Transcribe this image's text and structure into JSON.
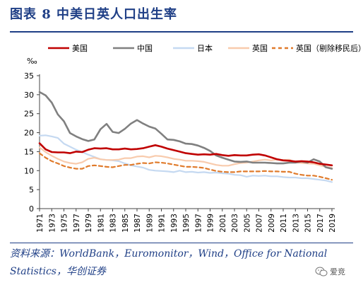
{
  "figure": {
    "title": "图表 8   中美日英人口出生率",
    "source_note": "资料来源：WorldBank，Euromonitor，Wind，Office for National Statistics，华创证券",
    "watermark": "爱竞"
  },
  "chart_data": {
    "type": "line",
    "title": "",
    "ylabel": "‰",
    "xlabel": "",
    "ylim": [
      0,
      35
    ],
    "yticks": [
      0,
      5,
      10,
      15,
      20,
      25,
      30,
      35
    ],
    "xticks": [
      "1971",
      "1973",
      "1975",
      "1977",
      "1979",
      "1981",
      "1983",
      "1985",
      "1987",
      "1989",
      "1991",
      "1993",
      "1995",
      "1997",
      "1999",
      "2001",
      "2003",
      "2005",
      "2007",
      "2009",
      "2011",
      "2013",
      "2015",
      "2017",
      "2019"
    ],
    "grid": false,
    "legend_position": "top",
    "x": [
      1971,
      1972,
      1973,
      1974,
      1975,
      1976,
      1977,
      1978,
      1979,
      1980,
      1981,
      1982,
      1983,
      1984,
      1985,
      1986,
      1987,
      1988,
      1989,
      1990,
      1991,
      1992,
      1993,
      1994,
      1995,
      1996,
      1997,
      1998,
      1999,
      2000,
      2001,
      2002,
      2003,
      2004,
      2005,
      2006,
      2007,
      2008,
      2009,
      2010,
      2011,
      2012,
      2013,
      2014,
      2015,
      2016,
      2017,
      2018,
      2019
    ],
    "series": [
      {
        "name": "美国",
        "color": "#c00000",
        "dash": "solid",
        "width": 2.6,
        "values": [
          17.2,
          15.6,
          14.9,
          14.8,
          14.8,
          14.6,
          15.0,
          14.9,
          15.5,
          15.9,
          15.8,
          15.9,
          15.6,
          15.6,
          15.8,
          15.6,
          15.7,
          15.9,
          16.3,
          16.7,
          16.3,
          15.8,
          15.4,
          15.0,
          14.6,
          14.4,
          14.2,
          14.3,
          14.2,
          14.4,
          14.1,
          13.9,
          14.1,
          14.0,
          14.0,
          14.2,
          14.3,
          14.0,
          13.5,
          13.0,
          12.7,
          12.6,
          12.4,
          12.5,
          12.4,
          12.2,
          11.8,
          11.6,
          11.4
        ]
      },
      {
        "name": "中国",
        "color": "#808080",
        "dash": "solid",
        "width": 2.6,
        "values": [
          30.7,
          29.8,
          27.9,
          24.8,
          23.0,
          19.9,
          19.0,
          18.3,
          17.8,
          18.2,
          20.9,
          22.3,
          20.2,
          19.9,
          21.0,
          22.4,
          23.3,
          22.4,
          21.6,
          21.1,
          19.7,
          18.2,
          18.1,
          17.7,
          17.1,
          17.0,
          16.6,
          16.0,
          15.2,
          14.0,
          13.4,
          12.9,
          12.4,
          12.3,
          12.4,
          12.1,
          12.1,
          12.1,
          12.0,
          11.9,
          11.9,
          12.1,
          12.1,
          12.4,
          12.1,
          13.0,
          12.4,
          10.9,
          10.5
        ]
      },
      {
        "name": "日本",
        "color": "#c5d9f1",
        "dash": "solid",
        "width": 2.2,
        "values": [
          19.2,
          19.3,
          19.0,
          18.6,
          17.1,
          16.3,
          15.5,
          14.9,
          14.2,
          13.6,
          13.0,
          12.8,
          12.7,
          12.5,
          11.9,
          11.4,
          11.1,
          10.8,
          10.2,
          10.0,
          9.9,
          9.8,
          9.6,
          10.0,
          9.6,
          9.7,
          9.5,
          9.6,
          9.4,
          9.5,
          9.3,
          9.2,
          8.9,
          8.8,
          8.4,
          8.7,
          8.6,
          8.7,
          8.5,
          8.5,
          8.3,
          8.2,
          8.2,
          8.0,
          8.0,
          7.8,
          7.6,
          7.4,
          7.0
        ]
      },
      {
        "name": "英国",
        "color": "#f8cbad",
        "dash": "solid",
        "width": 2.2,
        "values": [
          16.1,
          14.9,
          13.9,
          13.1,
          12.4,
          12.0,
          11.8,
          12.2,
          13.1,
          13.4,
          13.0,
          12.8,
          12.8,
          12.9,
          13.3,
          13.3,
          13.7,
          13.8,
          13.5,
          13.9,
          13.8,
          13.5,
          13.1,
          12.9,
          12.6,
          12.6,
          12.5,
          12.3,
          11.9,
          11.5,
          11.3,
          11.3,
          11.7,
          12.0,
          12.1,
          12.4,
          12.7,
          12.9,
          12.7,
          12.9,
          12.8,
          12.9,
          12.2,
          12.0,
          11.9,
          11.8,
          11.4,
          11.0,
          10.7
        ]
      },
      {
        "name": "英国（剔除移民后）",
        "color": "#e07b2c",
        "dash": "dashed",
        "width": 2.2,
        "values": [
          14.6,
          13.4,
          12.5,
          11.9,
          11.2,
          10.8,
          10.5,
          10.5,
          11.2,
          11.4,
          11.2,
          11.0,
          10.9,
          11.2,
          11.5,
          11.5,
          11.8,
          12.0,
          11.9,
          12.2,
          12.1,
          11.9,
          11.6,
          11.3,
          11.0,
          11.0,
          10.9,
          10.7,
          10.3,
          9.9,
          9.7,
          9.6,
          9.6,
          9.8,
          9.8,
          9.8,
          9.8,
          9.9,
          9.8,
          9.8,
          9.7,
          9.7,
          9.2,
          8.9,
          8.7,
          8.7,
          8.4,
          8.0,
          7.6
        ]
      }
    ]
  }
}
